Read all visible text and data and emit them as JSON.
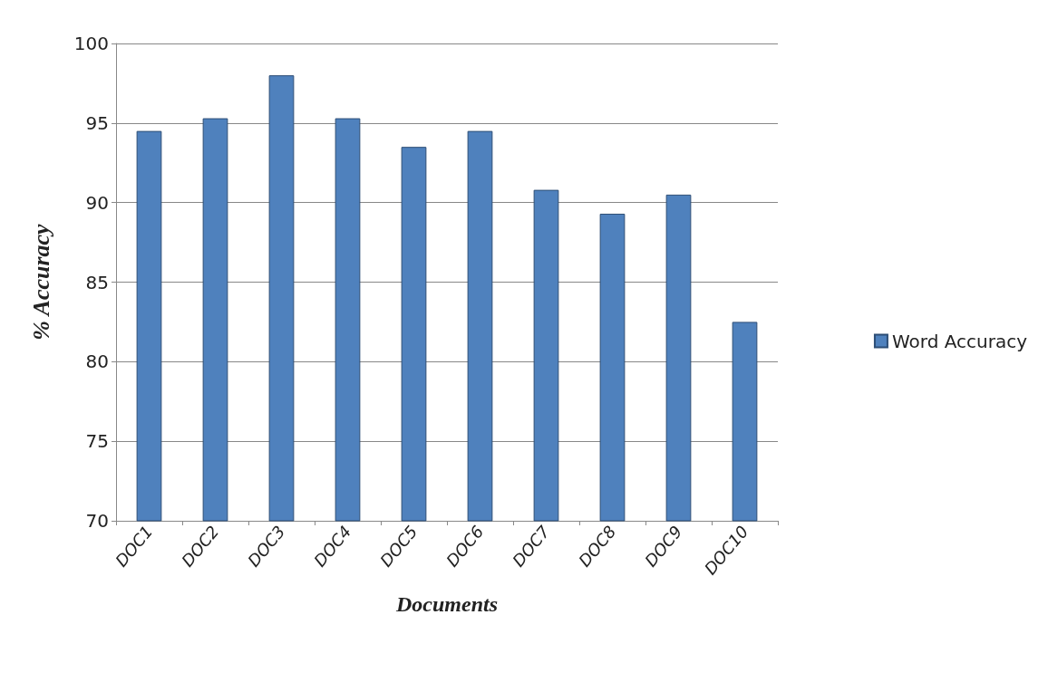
{
  "chart_data": {
    "type": "bar",
    "xlabel": "Documents",
    "ylabel": "% Accuracy",
    "categories": [
      "DOC1",
      "DOC2",
      "DOC3",
      "DOC4",
      "DOC5",
      "DOC6",
      "DOC7",
      "DOC8",
      "DOC9",
      "DOC10"
    ],
    "series": [
      {
        "name": "Word Accuracy",
        "color": "#4f81bd",
        "values": [
          94.5,
          95.3,
          98,
          95.3,
          93.5,
          94.5,
          90.8,
          89.3,
          90.5,
          82.5
        ]
      }
    ],
    "ylim": [
      70,
      100
    ],
    "yticks": [
      70,
      75,
      80,
      85,
      90,
      95,
      100
    ],
    "grid": "y",
    "legend": "right"
  }
}
